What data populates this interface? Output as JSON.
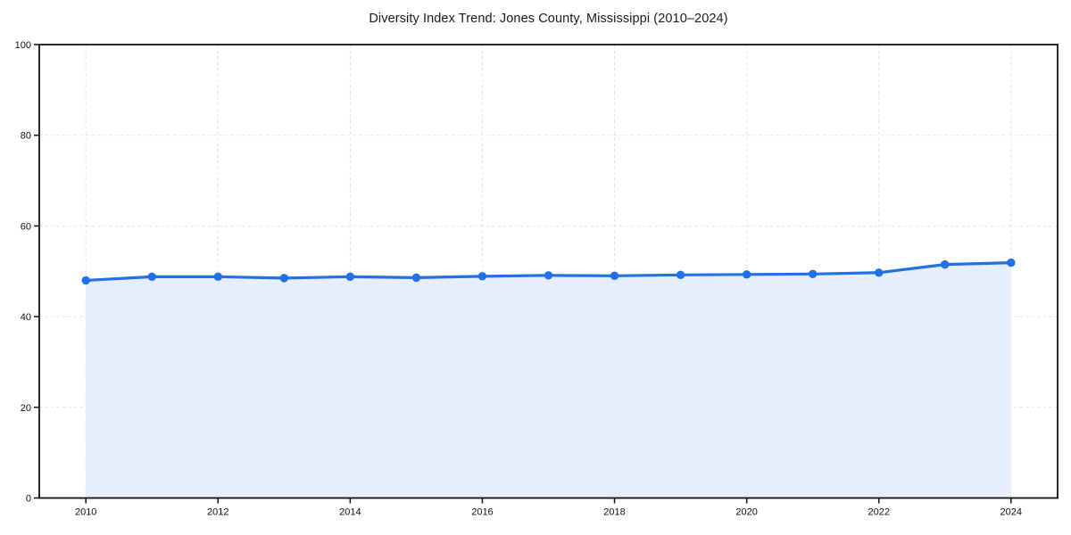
{
  "chart_data": {
    "type": "area",
    "title": "Diversity Index Trend: Jones County, Mississippi (2010–2024)",
    "x": [
      2010,
      2011,
      2012,
      2013,
      2014,
      2015,
      2016,
      2017,
      2018,
      2019,
      2020,
      2021,
      2022,
      2023,
      2024
    ],
    "values": [
      48.0,
      48.8,
      48.8,
      48.5,
      48.8,
      48.6,
      48.9,
      49.1,
      49.0,
      49.2,
      49.3,
      49.4,
      49.7,
      51.5,
      51.9
    ],
    "xlabel": "",
    "ylabel": "",
    "ylim": [
      0,
      100
    ],
    "yticks": [
      0,
      20,
      40,
      60,
      80,
      100
    ],
    "xticks": [
      2010,
      2012,
      2014,
      2016,
      2018,
      2020,
      2022,
      2024
    ],
    "grid": true,
    "legend": "none"
  },
  "colors": {
    "line": "#2170e8",
    "marker": "#2170e8",
    "area_fill": "#e6edfb",
    "grid": "#e3e3e3",
    "spine": "#111111",
    "tick_text": "#111111",
    "background": "#ffffff"
  }
}
